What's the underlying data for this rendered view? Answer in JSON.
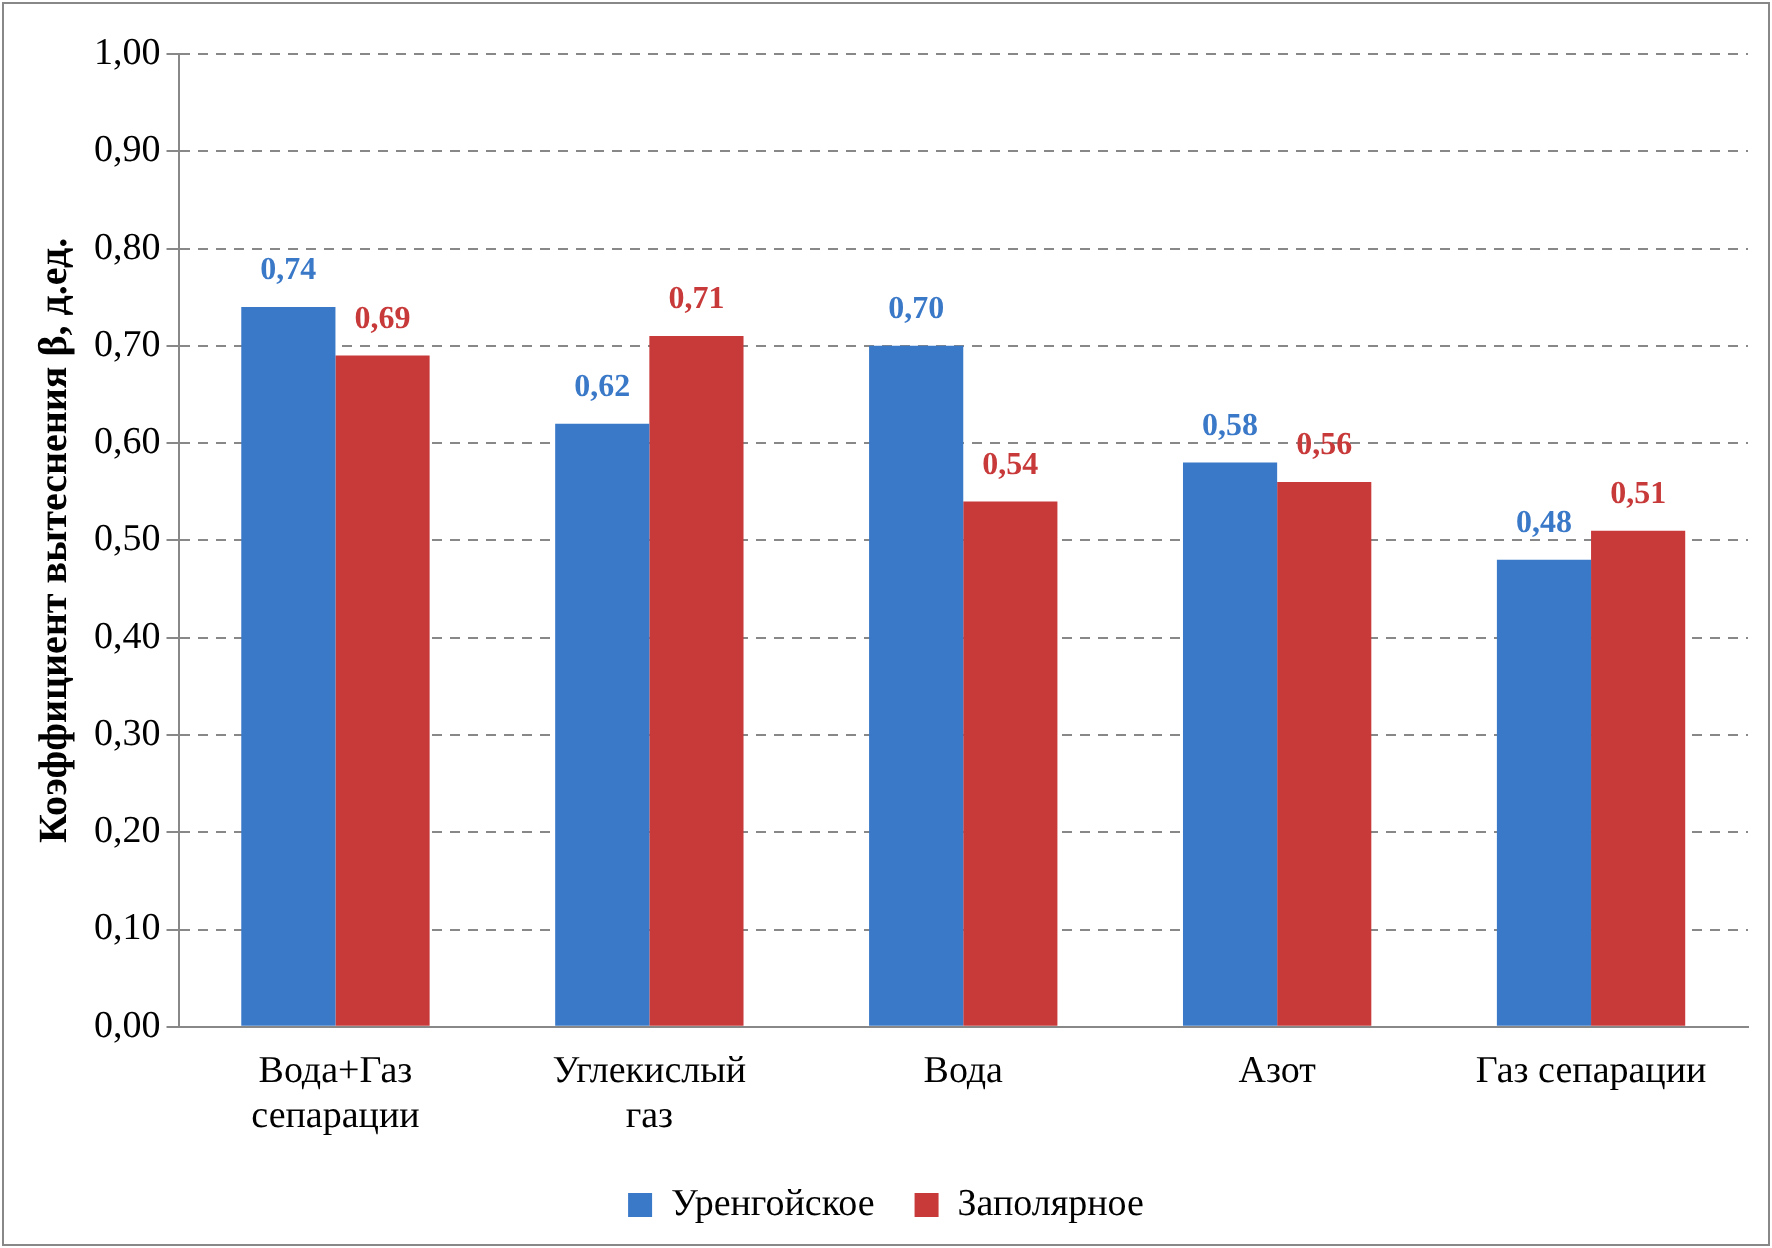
{
  "chart_data": {
    "type": "bar",
    "ylabel": "Коэффициент вытеснения β, д.ед.",
    "categories": [
      [
        "Вода+Газ",
        "сепарации"
      ],
      [
        "Углекислый",
        "газ"
      ],
      "Вода",
      "Азот",
      "Газ сепарации"
    ],
    "series": [
      {
        "name": "Уренгойское",
        "color": "#3a78c8",
        "values": [
          0.74,
          0.62,
          0.7,
          0.58,
          0.48
        ],
        "value_labels": [
          "0,74",
          "0,62",
          "0,70",
          "0,58",
          "0,48"
        ]
      },
      {
        "name": "Заполярное",
        "color": "#c8393a",
        "values": [
          0.69,
          0.71,
          0.54,
          0.56,
          0.51
        ],
        "value_labels": [
          "0,69",
          "0,71",
          "0,54",
          "0,56",
          "0,51"
        ]
      }
    ],
    "ylim": [
      0,
      1
    ],
    "yticks": [
      {
        "value": 0,
        "label": "0,00"
      },
      {
        "value": 0.1,
        "label": "0,10"
      },
      {
        "value": 0.2,
        "label": "0,20"
      },
      {
        "value": 0.3,
        "label": "0,30"
      },
      {
        "value": 0.4,
        "label": "0,40"
      },
      {
        "value": 0.5,
        "label": "0,50"
      },
      {
        "value": 0.6,
        "label": "0,60"
      },
      {
        "value": 0.7,
        "label": "0,70"
      },
      {
        "value": 0.8,
        "label": "0,80"
      },
      {
        "value": 0.9,
        "label": "0,90"
      },
      {
        "value": 1,
        "label": "1,00"
      }
    ],
    "grid": "y",
    "legend": "bottom"
  }
}
